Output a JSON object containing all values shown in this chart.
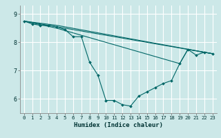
{
  "title": "",
  "xlabel": "Humidex (Indice chaleur)",
  "bg_color": "#cce8e8",
  "grid_color": "#ffffff",
  "line_color": "#006666",
  "xlim": [
    -0.5,
    23.5
  ],
  "ylim": [
    5.5,
    9.3
  ],
  "yticks": [
    6,
    7,
    8,
    9
  ],
  "xticks": [
    0,
    1,
    2,
    3,
    4,
    5,
    6,
    7,
    8,
    9,
    10,
    11,
    12,
    13,
    14,
    15,
    16,
    17,
    18,
    19,
    20,
    21,
    22,
    23
  ],
  "series": [
    [
      0,
      8.75
    ],
    [
      1,
      8.65
    ],
    [
      2,
      8.6
    ],
    [
      3,
      8.6
    ],
    [
      4,
      8.55
    ],
    [
      5,
      8.45
    ],
    [
      6,
      8.2
    ],
    [
      7,
      8.2
    ],
    [
      8,
      7.3
    ],
    [
      9,
      6.85
    ],
    [
      10,
      5.95
    ],
    [
      11,
      5.95
    ],
    [
      12,
      5.8
    ],
    [
      13,
      5.75
    ],
    [
      14,
      6.1
    ],
    [
      15,
      6.25
    ],
    [
      16,
      6.4
    ],
    [
      17,
      6.55
    ],
    [
      18,
      6.65
    ],
    [
      19,
      7.25
    ],
    [
      20,
      7.75
    ],
    [
      21,
      7.55
    ],
    [
      22,
      7.65
    ],
    [
      23,
      7.6
    ]
  ],
  "extra_lines": [
    [
      [
        0,
        8.75
      ],
      [
        23,
        7.6
      ]
    ],
    [
      [
        0,
        8.75
      ],
      [
        4,
        8.6
      ],
      [
        23,
        7.6
      ]
    ],
    [
      [
        0,
        8.75
      ],
      [
        4,
        8.5
      ],
      [
        19,
        7.25
      ],
      [
        20,
        7.75
      ],
      [
        23,
        7.6
      ]
    ]
  ]
}
